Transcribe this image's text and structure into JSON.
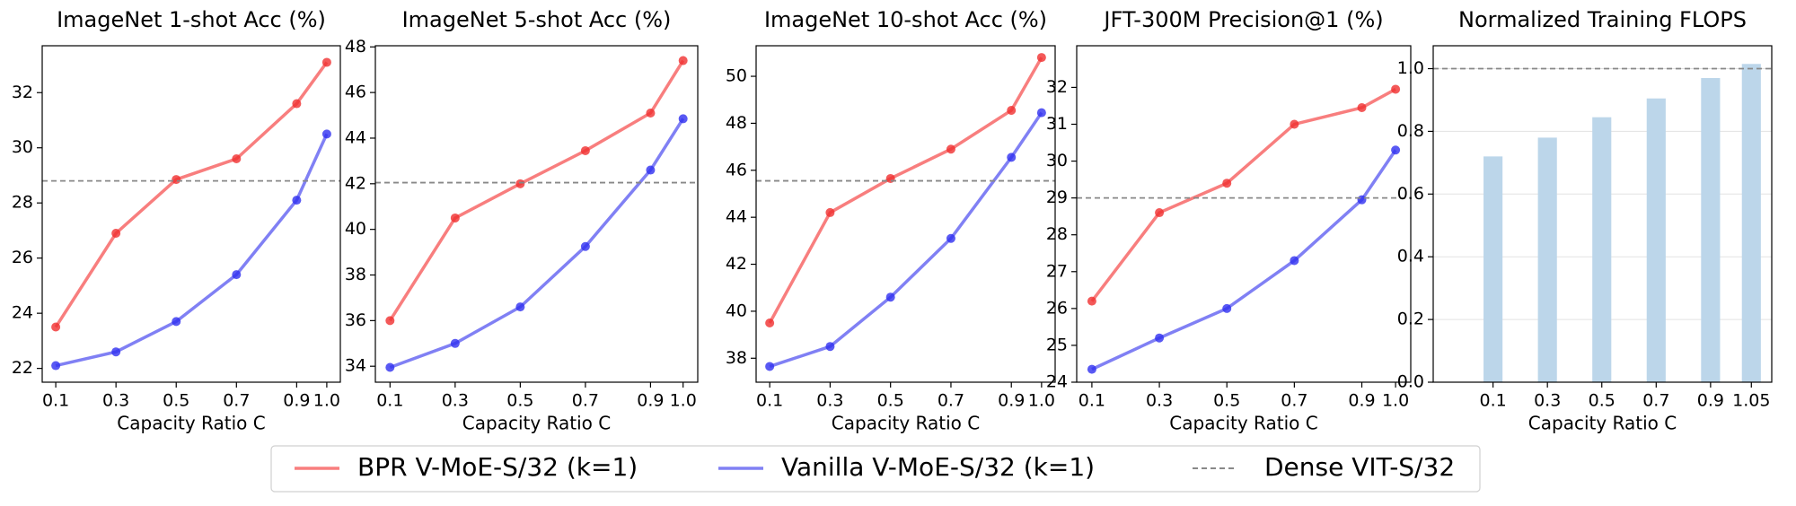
{
  "chart_data": [
    {
      "type": "line",
      "title": "ImageNet 1-shot Acc (%)",
      "x_label": "Capacity Ratio C",
      "x": [
        0.1,
        0.3,
        0.5,
        0.7,
        0.9,
        1.0
      ],
      "xlim": [
        0.055,
        1.045
      ],
      "xticks": [
        0.1,
        0.3,
        0.5,
        0.7,
        0.9,
        {
          "value": 1.0,
          "label": "1.0"
        }
      ],
      "ylim": [
        21.5,
        33.7
      ],
      "yticks": [
        22,
        24,
        26,
        28,
        30,
        32
      ],
      "series": [
        {
          "name": "BPR V-MoE-S/32 (k=1)",
          "color": "#f87e7e",
          "marker_color": "#f03030",
          "values": [
            23.5,
            26.9,
            28.85,
            29.6,
            31.6,
            33.1
          ]
        },
        {
          "name": "Vanilla V-MoE-S/32 (k=1)",
          "color": "#8080f4",
          "marker_color": "#3030f0",
          "values": [
            22.1,
            22.6,
            23.7,
            25.4,
            28.1,
            30.5
          ]
        }
      ],
      "reference_line": {
        "name": "Dense VIT-S/32",
        "value": 28.8,
        "color": "#888888"
      }
    },
    {
      "type": "line",
      "title": "ImageNet 5-shot Acc (%)",
      "x_label": "Capacity Ratio C",
      "x": [
        0.1,
        0.3,
        0.5,
        0.7,
        0.9,
        1.0
      ],
      "xlim": [
        0.055,
        1.045
      ],
      "xticks": [
        0.1,
        0.3,
        0.5,
        0.7,
        0.9,
        {
          "value": 1.0,
          "label": "1.0"
        }
      ],
      "ylim": [
        33.3,
        48.05
      ],
      "yticks": [
        34,
        36,
        38,
        40,
        42,
        44,
        46,
        48
      ],
      "series": [
        {
          "color": "#f87e7e",
          "marker_color": "#f03030",
          "values": [
            36.0,
            40.5,
            42.0,
            43.45,
            45.1,
            47.4
          ]
        },
        {
          "color": "#8080f4",
          "marker_color": "#3030f0",
          "values": [
            33.95,
            35.0,
            36.6,
            39.25,
            42.6,
            44.85
          ]
        }
      ],
      "reference_line": {
        "value": 42.05,
        "color": "#888888"
      }
    },
    {
      "type": "line",
      "title": "ImageNet 10-shot Acc (%)",
      "x_label": "Capacity Ratio C",
      "x": [
        0.1,
        0.3,
        0.5,
        0.7,
        0.9,
        1.0
      ],
      "xlim": [
        0.055,
        1.045
      ],
      "xticks": [
        0.1,
        0.3,
        0.5,
        0.7,
        0.9,
        {
          "value": 1.0,
          "label": "1.0"
        }
      ],
      "ylim": [
        36.98,
        51.3
      ],
      "yticks": [
        38,
        40,
        42,
        44,
        46,
        48,
        50
      ],
      "series": [
        {
          "color": "#f87e7e",
          "marker_color": "#f03030",
          "values": [
            39.5,
            44.2,
            45.65,
            46.9,
            48.55,
            50.8
          ]
        },
        {
          "color": "#8080f4",
          "marker_color": "#3030f0",
          "values": [
            37.65,
            38.5,
            40.6,
            43.1,
            46.55,
            48.45
          ]
        }
      ],
      "reference_line": {
        "value": 45.55,
        "color": "#888888"
      }
    },
    {
      "type": "line",
      "title": "JFT-300M Precision@1 (%)",
      "x_label": "Capacity Ratio C",
      "x": [
        0.1,
        0.3,
        0.5,
        0.7,
        0.9,
        1.0
      ],
      "xlim": [
        0.055,
        1.045
      ],
      "xticks": [
        0.1,
        0.3,
        0.5,
        0.7,
        0.9,
        {
          "value": 1.0,
          "label": "1.0"
        }
      ],
      "ylim": [
        24,
        33.13
      ],
      "yticks": [
        24,
        25,
        26,
        27,
        28,
        29,
        30,
        31,
        32
      ],
      "series": [
        {
          "color": "#f87e7e",
          "marker_color": "#f03030",
          "values": [
            26.2,
            28.6,
            29.4,
            31.0,
            31.45,
            31.95
          ]
        },
        {
          "color": "#8080f4",
          "marker_color": "#3030f0",
          "values": [
            24.35,
            25.2,
            26.0,
            27.3,
            28.95,
            30.3
          ]
        }
      ],
      "reference_line": {
        "value": 29.0,
        "color": "#888888"
      }
    },
    {
      "type": "bar",
      "title": "Normalized Training FLOPS",
      "x_label": "Capacity Ratio C",
      "x": [
        0.1,
        0.3,
        0.5,
        0.7,
        0.9,
        1.05
      ],
      "xlim": [
        -0.12,
        1.125
      ],
      "xticks": [
        0.1,
        0.3,
        0.5,
        0.7,
        0.9,
        1.05
      ],
      "ylim": [
        0,
        1.073
      ],
      "yticks": [
        {
          "value": 0,
          "label": "0.0"
        },
        0.2,
        0.4,
        0.6,
        0.8,
        {
          "value": 1.0,
          "label": "1.0"
        }
      ],
      "grid": true,
      "color": "#bcd6ea",
      "values": [
        0.72,
        0.78,
        0.845,
        0.905,
        0.97,
        1.015
      ],
      "reference_line": {
        "value": 1.0,
        "color": "#888888"
      }
    }
  ]
}
